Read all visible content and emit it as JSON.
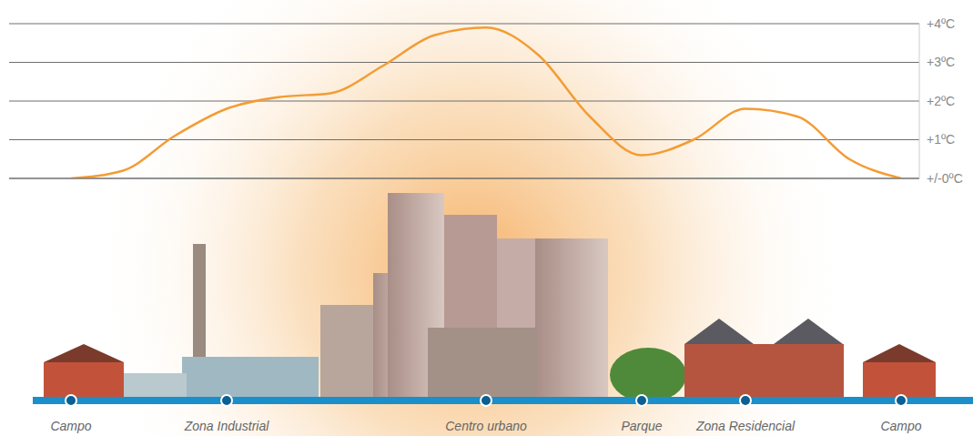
{
  "chart_data": {
    "type": "line",
    "categories": [
      "Campo",
      null,
      null,
      "Zona Industrial",
      null,
      null,
      null,
      null,
      "Centro urbano",
      null,
      null,
      "Parque",
      null,
      "Zona Residencial",
      null,
      null,
      "Campo"
    ],
    "values": [
      0,
      0.2,
      1.1,
      1.8,
      2.1,
      2.2,
      2.9,
      3.7,
      3.9,
      3.2,
      1.6,
      0.6,
      1.0,
      1.8,
      1.6,
      0.5,
      0
    ],
    "color": "#f39c34",
    "ylim": [
      0,
      4
    ],
    "yticks": [
      {
        "value": 0,
        "label": "+/-0ºC"
      },
      {
        "value": 1,
        "label": "+1ºC"
      },
      {
        "value": 2,
        "label": "+2ºC"
      },
      {
        "value": 3,
        "label": "+3ºC"
      },
      {
        "value": 4,
        "label": "+4ºC"
      }
    ],
    "grid": true
  }
}
